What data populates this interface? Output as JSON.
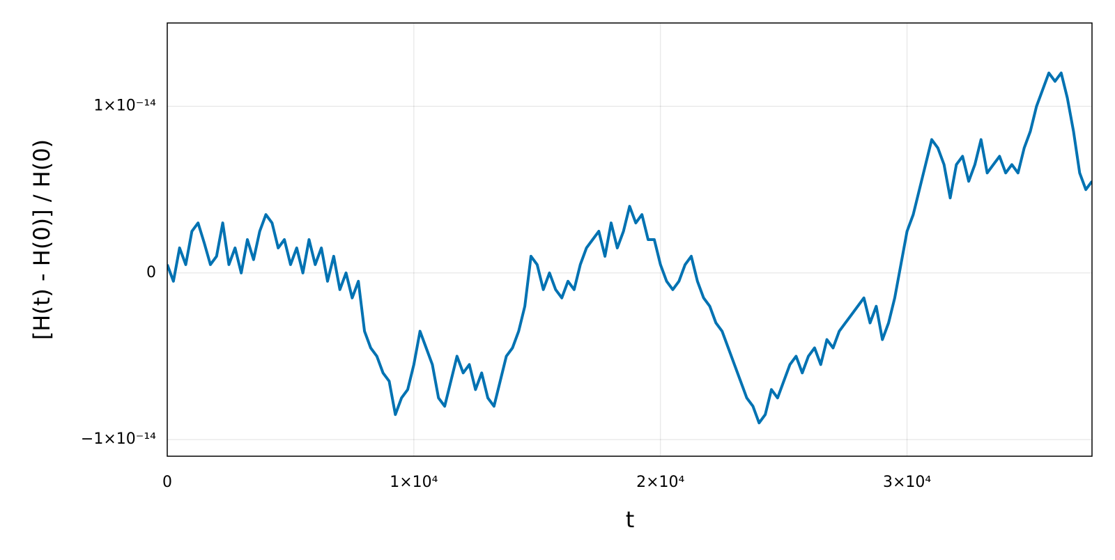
{
  "chart_data": {
    "type": "line",
    "x_label": "t",
    "y_label": "[H(t) - H(0)] / H(0)",
    "xlim": [
      0,
      37500
    ],
    "ylim": [
      -1.1e-14,
      1.5e-14
    ],
    "xticks": [
      0,
      {
        "value": 10000,
        "label": "1×10⁴"
      },
      {
        "value": 20000,
        "label": "2×10⁴"
      },
      {
        "value": 30000,
        "label": "3×10⁴"
      }
    ],
    "yticks": [
      {
        "value": -1e-14,
        "label": "−1×10⁻¹⁴"
      },
      0,
      {
        "value": 1e-14,
        "label": "1×10⁻¹⁴"
      }
    ],
    "grid": true,
    "x": [
      0,
      250,
      500,
      750,
      1000,
      1250,
      1500,
      1750,
      2000,
      2250,
      2500,
      2750,
      3000,
      3250,
      3500,
      3750,
      4000,
      4250,
      4500,
      4750,
      5000,
      5250,
      5500,
      5750,
      6000,
      6250,
      6500,
      6750,
      7000,
      7250,
      7500,
      7750,
      8000,
      8250,
      8500,
      8750,
      9000,
      9250,
      9500,
      9750,
      10000,
      10250,
      10500,
      10750,
      11000,
      11250,
      11500,
      11750,
      12000,
      12250,
      12500,
      12750,
      13000,
      13250,
      13500,
      13750,
      14000,
      14250,
      14500,
      14750,
      15000,
      15250,
      15500,
      15750,
      16000,
      16250,
      16500,
      16750,
      17000,
      17250,
      17500,
      17750,
      18000,
      18250,
      18500,
      18750,
      19000,
      19250,
      19500,
      19750,
      20000,
      20250,
      20500,
      20750,
      21000,
      21250,
      21500,
      21750,
      22000,
      22250,
      22500,
      22750,
      23000,
      23250,
      23500,
      23750,
      24000,
      24250,
      24500,
      24750,
      25000,
      25250,
      25500,
      25750,
      26000,
      26250,
      26500,
      26750,
      27000,
      27250,
      27500,
      27750,
      28000,
      28250,
      28500,
      28750,
      29000,
      29250,
      29500,
      29750,
      30000,
      30250,
      30500,
      30750,
      31000,
      31250,
      31500,
      31750,
      32000,
      32250,
      32500,
      32750,
      33000,
      33250,
      33500,
      33750,
      34000,
      34250,
      34500,
      34750,
      35000,
      35250,
      35500,
      35750,
      36000,
      36250,
      36500,
      36750,
      37000,
      37250,
      37500
    ],
    "series": [
      {
        "color": "#0072b2",
        "values": [
          5e-16,
          -5e-16,
          1.5e-15,
          5e-16,
          2.5e-15,
          3e-15,
          1.8e-15,
          5e-16,
          1e-15,
          3e-15,
          5e-16,
          1.5e-15,
          0,
          2e-15,
          8e-16,
          2.5e-15,
          3.5e-15,
          3e-15,
          1.5e-15,
          2e-15,
          5e-16,
          1.5e-15,
          0,
          2e-15,
          5e-16,
          1.5e-15,
          -5e-16,
          1e-15,
          -1e-15,
          0,
          -1.5e-15,
          -5e-16,
          -3.5e-15,
          -4.5e-15,
          -5e-15,
          -6e-15,
          -6.5e-15,
          -8.5e-15,
          -7.5e-15,
          -7e-15,
          -5.5e-15,
          -3.5e-15,
          -4.5e-15,
          -5.5e-15,
          -7.5e-15,
          -8e-15,
          -6.5e-15,
          -5e-15,
          -6e-15,
          -5.5e-15,
          -7e-15,
          -6e-15,
          -7.5e-15,
          -8e-15,
          -6.5e-15,
          -5e-15,
          -4.5e-15,
          -3.5e-15,
          -2e-15,
          1e-15,
          5e-16,
          -1e-15,
          0,
          -1e-15,
          -1.5e-15,
          -5e-16,
          -1e-15,
          5e-16,
          1.5e-15,
          2e-15,
          2.5e-15,
          1e-15,
          3e-15,
          1.5e-15,
          2.5e-15,
          4e-15,
          3e-15,
          3.5e-15,
          2e-15,
          2e-15,
          5e-16,
          -5e-16,
          -1e-15,
          -5e-16,
          5e-16,
          1e-15,
          -5e-16,
          -1.5e-15,
          -2e-15,
          -3e-15,
          -3.5e-15,
          -4.5e-15,
          -5.5e-15,
          -6.5e-15,
          -7.5e-15,
          -8e-15,
          -9e-15,
          -8.5e-15,
          -7e-15,
          -7.5e-15,
          -6.5e-15,
          -5.5e-15,
          -5e-15,
          -6e-15,
          -5e-15,
          -4.5e-15,
          -5.5e-15,
          -4e-15,
          -4.5e-15,
          -3.5e-15,
          -3e-15,
          -2.5e-15,
          -2e-15,
          -1.5e-15,
          -3e-15,
          -2e-15,
          -4e-15,
          -3e-15,
          -1.5e-15,
          5e-16,
          2.5e-15,
          3.5e-15,
          5e-15,
          6.5e-15,
          8e-15,
          7.5e-15,
          6.5e-15,
          4.5e-15,
          6.5e-15,
          7e-15,
          5.5e-15,
          6.5e-15,
          8e-15,
          6e-15,
          6.5e-15,
          7e-15,
          6e-15,
          6.5e-15,
          6e-15,
          7.5e-15,
          8.5e-15,
          1e-14,
          1.1e-14,
          1.2e-14,
          1.15e-14,
          1.2e-14,
          1.05e-14,
          8.5e-15,
          6e-15,
          5e-15,
          5.5e-15
        ]
      }
    ]
  }
}
